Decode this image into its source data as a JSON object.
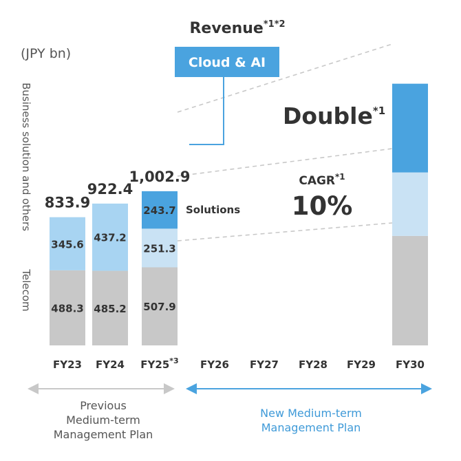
{
  "chart_data": {
    "type": "bar",
    "stacked": true,
    "title": "Revenue",
    "title_superscript": "*1*2",
    "unit": "(JPY bn)",
    "categories": [
      "FY23",
      "FY24",
      "FY25",
      "FY26",
      "FY27",
      "FY28",
      "FY29",
      "FY30"
    ],
    "category_superscripts": [
      "",
      "",
      "*3",
      "",
      "",
      "",
      "",
      ""
    ],
    "totals": [
      "833.9",
      "922.4",
      "1,002.9",
      null,
      null,
      null,
      null,
      null
    ],
    "series": [
      {
        "key": "telecom",
        "values": [
          488.3,
          485.2,
          507.9,
          null,
          null,
          null,
          null,
          712
        ],
        "labels": [
          "488.3",
          "485.2",
          "507.9",
          "",
          "",
          "",
          "",
          ""
        ],
        "color": "#c8c8c8"
      },
      {
        "key": "business",
        "values": [
          345.6,
          437.2,
          null,
          null,
          null,
          null,
          null,
          null
        ],
        "labels": [
          "345.6",
          "437.2",
          "",
          "",
          "",
          "",
          "",
          ""
        ],
        "color": "#a8d4f2"
      },
      {
        "key": "solutions",
        "values": [
          null,
          null,
          251.3,
          null,
          null,
          null,
          null,
          413
        ],
        "labels": [
          "",
          "",
          "251.3",
          "",
          "",
          "",
          "",
          ""
        ],
        "color": "#c9e2f4"
      },
      {
        "key": "cloud_ai",
        "values": [
          null,
          null,
          243.7,
          null,
          null,
          null,
          null,
          577
        ],
        "labels": [
          "",
          "",
          "243.7",
          "",
          "",
          "",
          "",
          ""
        ],
        "color": "#4aa3df"
      }
    ],
    "ylim": [
      0,
      1960
    ],
    "grid": false,
    "y_group_labels": {
      "business": "Business solution and others",
      "telecom": "Telecom"
    },
    "annotations": {
      "cloud_box": "Cloud & AI",
      "solutions_label": "Solutions",
      "double": "Double",
      "double_sup": "*1",
      "cagr": "CAGR",
      "cagr_sup": "*1",
      "cagr_value": "10%"
    },
    "plans": [
      {
        "label_lines": [
          "Previous",
          "Medium-term",
          "Management Plan"
        ],
        "from": "FY23",
        "to": "FY25",
        "color": "#c8c8c8",
        "text_color": "#555555"
      },
      {
        "label_lines": [
          "New Medium-term",
          "Management Plan"
        ],
        "from": "FY26",
        "to": "FY30",
        "color": "#4aa3df",
        "text_color": "#3f9ad8"
      }
    ]
  }
}
